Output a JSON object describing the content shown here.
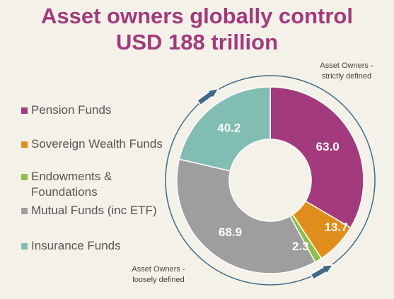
{
  "title": {
    "line1": "Asset owners globally control",
    "line2": "USD 188 trillion"
  },
  "annotations": {
    "strict_line1": "Asset Owners -",
    "strict_line2": "strictly defined",
    "loose_line1": "Asset Owners -",
    "loose_line2": "loosely defined"
  },
  "legend": [
    {
      "label": "Pension Funds",
      "color": "#a23a7d"
    },
    {
      "label": "Sovereign Wealth Funds",
      "color": "#e08e1b"
    },
    {
      "label": "Endowments & Foundations",
      "color": "#8fbc4a"
    },
    {
      "label": "Mutual Funds (inc ETF)",
      "color": "#9e9e9e"
    },
    {
      "label": "Insurance Funds",
      "color": "#82bdb3"
    }
  ],
  "colors": {
    "title": "#a23a7d",
    "background": "#f4f1e8",
    "arrow": "#3f6a88",
    "ring": "#3f6a88"
  },
  "chart_data": {
    "type": "pie",
    "title": "Asset owners globally control USD 188 trillion",
    "categories": [
      "Pension Funds",
      "Sovereign Wealth Funds",
      "Endowments & Foundations",
      "Mutual Funds (inc ETF)",
      "Insurance Funds"
    ],
    "values": [
      63.0,
      13.7,
      2.3,
      68.9,
      40.2
    ],
    "value_labels": [
      "63.0",
      "13.7",
      "2.3",
      "68.9",
      "40.2"
    ],
    "colors": [
      "#a23a7d",
      "#e08e1b",
      "#8fbc4a",
      "#9e9e9e",
      "#82bdb3"
    ],
    "donut": true,
    "legend_position": "left"
  }
}
